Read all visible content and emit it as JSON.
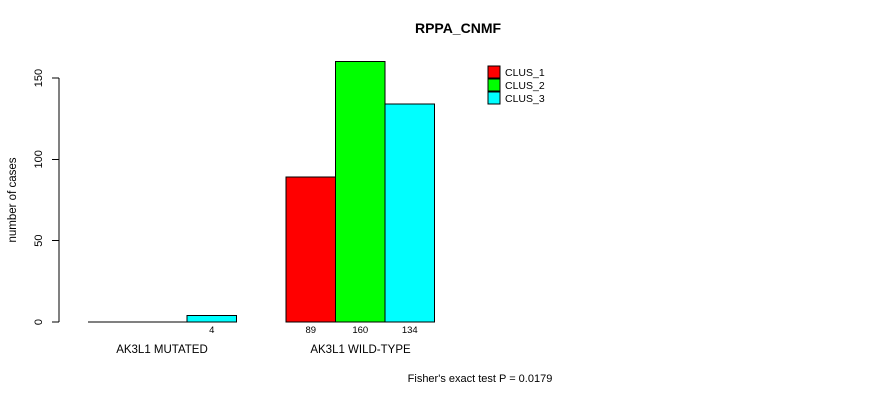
{
  "chart_data": {
    "type": "bar",
    "title": "RPPA_CNMF",
    "xlabel": "",
    "ylabel": "number of cases",
    "categories": [
      "AK3L1 MUTATED",
      "AK3L1 WILD-TYPE"
    ],
    "series": [
      {
        "name": "CLUS_1",
        "color": "#ff0000",
        "values": [
          0,
          89
        ]
      },
      {
        "name": "CLUS_2",
        "color": "#00ff00",
        "values": [
          0,
          160
        ]
      },
      {
        "name": "CLUS_3",
        "color": "#00ffff",
        "values": [
          4,
          134
        ]
      }
    ],
    "bar_value_labels": [
      [
        "",
        "",
        "4"
      ],
      [
        "89",
        "160",
        "134"
      ]
    ],
    "yticks": [
      "0",
      "50",
      "100",
      "150"
    ],
    "ytick_values": [
      0,
      50,
      100,
      150
    ],
    "ylim": [
      0,
      160
    ],
    "grid": false,
    "bar_outline_color": "#000000",
    "legend_position": "top-right",
    "annotation": "Fisher's exact test P = 0.0179"
  }
}
